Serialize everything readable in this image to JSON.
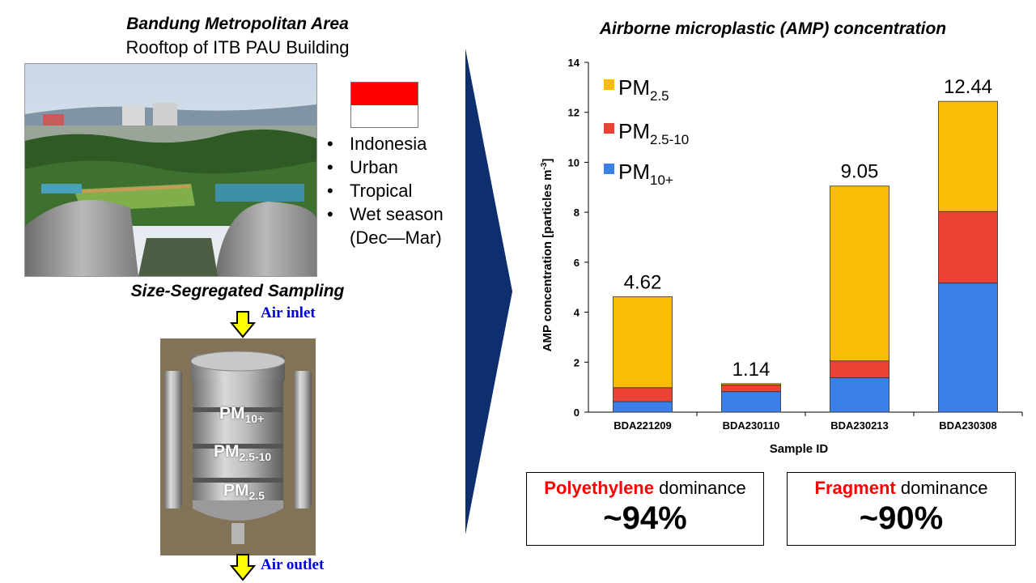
{
  "left": {
    "site_title": "Bandung Metropolitan Area",
    "site_subtitle": "Rooftop of ITB PAU Building",
    "bullets": [
      "Indonesia",
      "Urban",
      "Tropical",
      "Wet season",
      "(Dec—Mar)"
    ],
    "sampling_title": "Size-Segregated Sampling",
    "air_inlet": "Air inlet",
    "air_outlet": "Air outlet",
    "sampler_labels": {
      "pm10": {
        "main": "PM",
        "sub": "10+"
      },
      "pm25_10": {
        "main": "PM",
        "sub": "2.5-10"
      },
      "pm25": {
        "main": "PM",
        "sub": "2.5"
      }
    },
    "flag_colors": {
      "top": "#ff0000",
      "bottom": "#ffffff"
    }
  },
  "chart_data": {
    "type": "bar",
    "stacked": true,
    "title": "Airborne microplastic (AMP) concentration",
    "xlabel": "Sample ID",
    "ylabel": "AMP concentration [particles m",
    "ylabel_sup": "-3",
    "ylabel_close": "]",
    "ylim": [
      0,
      14
    ],
    "yticks": [
      0,
      2,
      4,
      6,
      8,
      10,
      12,
      14
    ],
    "categories": [
      "BDA221209",
      "BDA230110",
      "BDA230213",
      "BDA230308"
    ],
    "series": [
      {
        "name": "PM",
        "sub": "10+",
        "color": "#3d7fea",
        "values": [
          0.42,
          0.82,
          1.38,
          5.17
        ]
      },
      {
        "name": "PM",
        "sub": "2.5-10",
        "color": "#ea4335",
        "values": [
          0.56,
          0.27,
          0.67,
          2.86
        ]
      },
      {
        "name": "PM",
        "sub": "2.5",
        "color": "#fbbc05",
        "values": [
          3.64,
          0.05,
          7.0,
          4.41
        ]
      }
    ],
    "totals": [
      "4.62",
      "1.14",
      "9.05",
      "12.44"
    ],
    "legend_position": "top-left"
  },
  "boxes": [
    {
      "highlight": "Polyethylene",
      "rest": " dominance",
      "value": "~94%"
    },
    {
      "highlight": "Fragment",
      "rest": " dominance",
      "value": "~90%"
    }
  ],
  "colors": {
    "arrow": "#0d2f6e",
    "highlight": "#ff0000",
    "inlet_arrow": "#ffff00"
  }
}
